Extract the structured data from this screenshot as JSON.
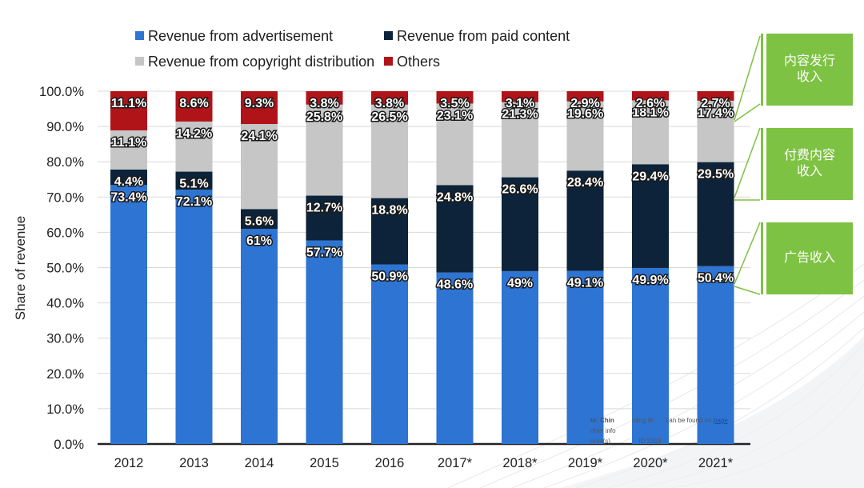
{
  "legend": {
    "items": [
      {
        "label": "Revenue from advertisement",
        "color": "#2e74d2"
      },
      {
        "label": "Revenue from paid content",
        "color": "#0c2339"
      },
      {
        "label": "Revenue from copyright distribution",
        "color": "#c6c6c6"
      },
      {
        "label": "Others",
        "color": "#b01419"
      }
    ]
  },
  "chart_data": {
    "type": "bar",
    "stacked": true,
    "ylabel": "Share of revenue",
    "xlabel": "",
    "ylim": [
      0,
      100
    ],
    "yticks": [
      "0.0%",
      "10.0%",
      "20.0%",
      "30.0%",
      "40.0%",
      "50.0%",
      "60.0%",
      "70.0%",
      "80.0%",
      "90.0%",
      "100.0%"
    ],
    "grid": true,
    "legend_position": "top",
    "categories": [
      "2012",
      "2013",
      "2014",
      "2015",
      "2016",
      "2017*",
      "2018*",
      "2019*",
      "2020*",
      "2021*"
    ],
    "series": [
      {
        "name": "Revenue from advertisement",
        "color": "#2e74d2",
        "values": [
          73.4,
          72.1,
          61,
          57.7,
          50.9,
          48.6,
          49,
          49.1,
          49.9,
          50.4
        ],
        "labels": [
          "73.4%",
          "72.1%",
          "61%",
          "57.7%",
          "50.9%",
          "48.6%",
          "49%",
          "49.1%",
          "49.9%",
          "50.4%"
        ]
      },
      {
        "name": "Revenue from paid content",
        "color": "#0c2339",
        "values": [
          4.4,
          5.1,
          5.6,
          12.7,
          18.8,
          24.8,
          26.6,
          28.4,
          29.4,
          29.5
        ],
        "labels": [
          "4.4%",
          "5.1%",
          "5.6%",
          "12.7%",
          "18.8%",
          "24.8%",
          "26.6%",
          "28.4%",
          "29.4%",
          "29.5%"
        ]
      },
      {
        "name": "Revenue from copyright distribution",
        "color": "#c6c6c6",
        "values": [
          11.1,
          14.2,
          24.1,
          25.8,
          26.5,
          23.1,
          21.3,
          19.6,
          18.1,
          17.4
        ],
        "labels": [
          "11.1%",
          "14.2%",
          "24.1%",
          "25.8%",
          "26.5%",
          "23.1%",
          "21.3%",
          "19.6%",
          "18.1%",
          "17.4%"
        ]
      },
      {
        "name": "Others",
        "color": "#b01419",
        "values": [
          11.1,
          8.6,
          9.3,
          3.8,
          3.8,
          3.5,
          3.1,
          2.9,
          2.6,
          2.7
        ],
        "labels": [
          "11.1%",
          "8.6%",
          "9.3%",
          "3.8%",
          "3.8%",
          "3.5%",
          "3.1%",
          "2.9%",
          "2.6%",
          "2.7%"
        ]
      }
    ]
  },
  "annotations": {
    "boxes": [
      {
        "text": "内容发行收入",
        "color": "#7dc242"
      },
      {
        "text": "付费内容收入",
        "color": "#7dc242"
      },
      {
        "text": "广告收入",
        "color": "#7dc242"
      }
    ]
  },
  "source_note": {
    "line1_a": "te:  Chin",
    "line1_b": "rding th",
    "line1_c": "can be found on",
    "line1_link": "page",
    "line2_a": "rther info",
    "line3_a": "urce(s)",
    "line3_b": "ID 2318"
  }
}
